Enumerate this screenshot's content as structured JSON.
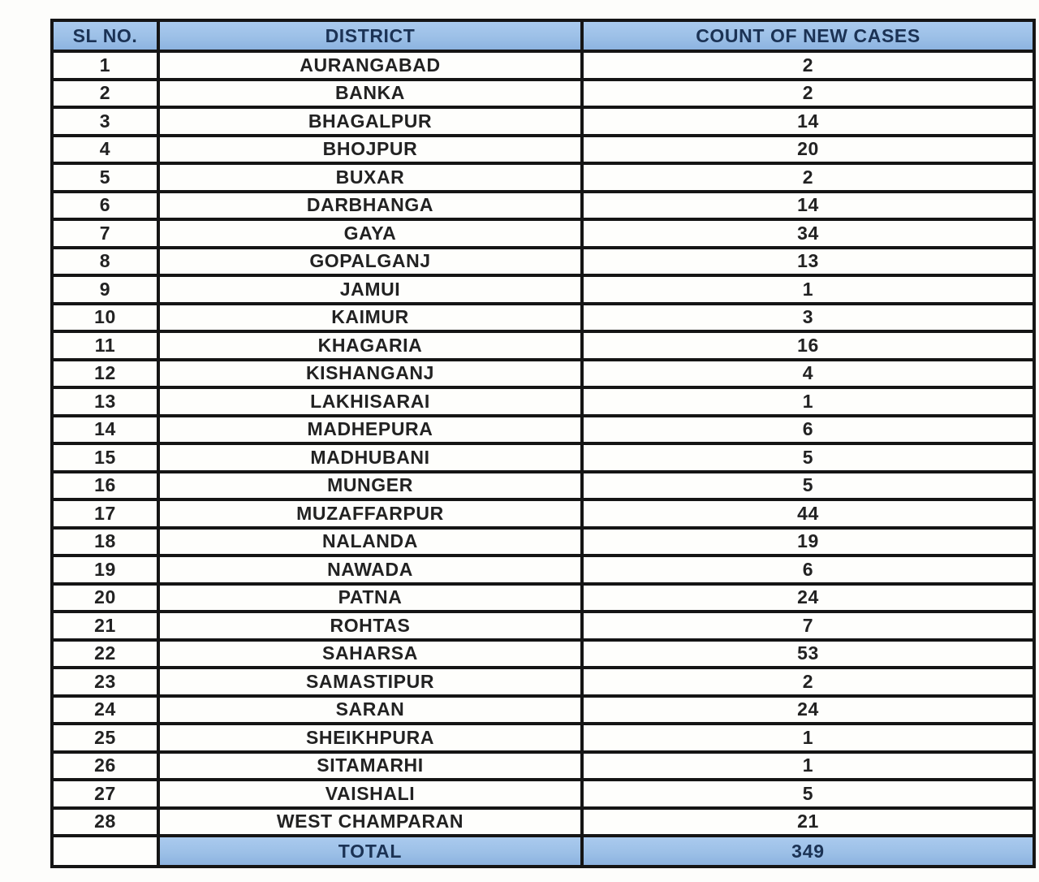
{
  "colors": {
    "header_bg": "#9cc0e7",
    "header_text": "#1b3254",
    "body_text": "#222222",
    "border": "#151515"
  },
  "chart_data": {
    "type": "table",
    "title": "",
    "columns": [
      "SL NO.",
      "DISTRICT",
      "COUNT OF NEW CASES"
    ],
    "rows": [
      [
        "1",
        "AURANGABAD",
        "2"
      ],
      [
        "2",
        "BANKA",
        "2"
      ],
      [
        "3",
        "BHAGALPUR",
        "14"
      ],
      [
        "4",
        "BHOJPUR",
        "20"
      ],
      [
        "5",
        "BUXAR",
        "2"
      ],
      [
        "6",
        "DARBHANGA",
        "14"
      ],
      [
        "7",
        "GAYA",
        "34"
      ],
      [
        "8",
        "GOPALGANJ",
        "13"
      ],
      [
        "9",
        "JAMUI",
        "1"
      ],
      [
        "10",
        "KAIMUR",
        "3"
      ],
      [
        "11",
        "KHAGARIA",
        "16"
      ],
      [
        "12",
        "KISHANGANJ",
        "4"
      ],
      [
        "13",
        "LAKHISARAI",
        "1"
      ],
      [
        "14",
        "MADHEPURA",
        "6"
      ],
      [
        "15",
        "MADHUBANI",
        "5"
      ],
      [
        "16",
        "MUNGER",
        "5"
      ],
      [
        "17",
        "MUZAFFARPUR",
        "44"
      ],
      [
        "18",
        "NALANDA",
        "19"
      ],
      [
        "19",
        "NAWADA",
        "6"
      ],
      [
        "20",
        "PATNA",
        "24"
      ],
      [
        "21",
        "ROHTAS",
        "7"
      ],
      [
        "22",
        "SAHARSA",
        "53"
      ],
      [
        "23",
        "SAMASTIPUR",
        "2"
      ],
      [
        "24",
        "SARAN",
        "24"
      ],
      [
        "25",
        "SHEIKHPURA",
        "1"
      ],
      [
        "26",
        "SITAMARHI",
        "1"
      ],
      [
        "27",
        "VAISHALI",
        "5"
      ],
      [
        "28",
        "WEST CHAMPARAN",
        "21"
      ]
    ],
    "total_row": {
      "sl": "",
      "label": "TOTAL",
      "value": "349"
    }
  }
}
